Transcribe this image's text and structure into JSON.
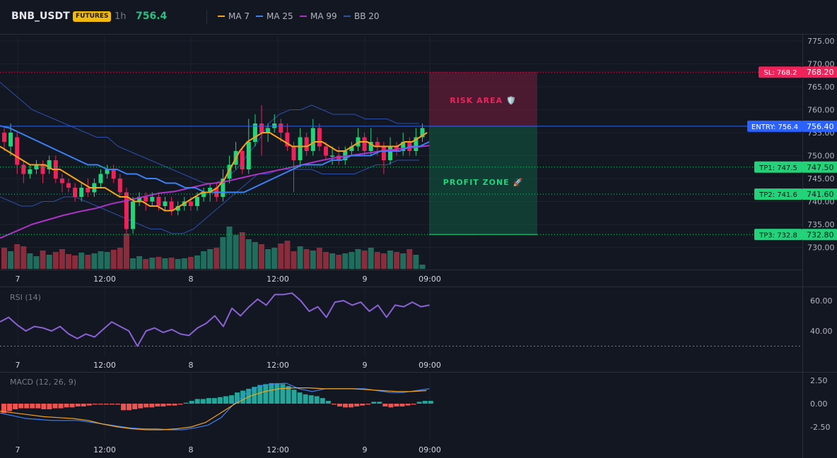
{
  "header": {
    "symbol": "BNB_USDT",
    "badge": "FUTURES",
    "timeframe": "1h",
    "price": "756.4",
    "legend": [
      {
        "label": "MA 7",
        "color": "#f7a21b"
      },
      {
        "label": "MA 25",
        "color": "#3b82f6"
      },
      {
        "label": "MA 99",
        "color": "#b033c9"
      },
      {
        "label": "BB 20",
        "color": "#2c4fa8"
      }
    ]
  },
  "colors": {
    "up": "#22d37a",
    "down": "#f0225a",
    "up_vol": "#1f6e5d",
    "down_vol": "#8a2c3c",
    "rsi": "#8b62d6",
    "macd": "#3b82f6",
    "signal": "#f7a21b"
  },
  "chart_data": [
    {
      "type": "candlestick",
      "title": "BNB_USDT",
      "x_tick_labels": [
        "7",
        "12:00",
        "8",
        "12:00",
        "9",
        "09:00"
      ],
      "y_tick_labels": [
        "775.00",
        "770.00",
        "765.00",
        "760.00",
        "755.00",
        "750.00",
        "745.00",
        "740.00",
        "735.00",
        "730.00"
      ],
      "ylim": [
        725.5,
        776.5
      ],
      "candles": [
        [
          755,
          753,
          756,
          751
        ],
        [
          752,
          755,
          757,
          750
        ],
        [
          754,
          748,
          755,
          746
        ],
        [
          748,
          746,
          749,
          744
        ],
        [
          746,
          747,
          748,
          745
        ],
        [
          747,
          748,
          749,
          746
        ],
        [
          748,
          746,
          749,
          744
        ],
        [
          747,
          749,
          750,
          746
        ],
        [
          749,
          745,
          750,
          744
        ],
        [
          745,
          744,
          746,
          742
        ],
        [
          744,
          743,
          745,
          742
        ],
        [
          743,
          741,
          744,
          740
        ],
        [
          741,
          743,
          744,
          740
        ],
        [
          743,
          742,
          745,
          741
        ],
        [
          742,
          744,
          745,
          741
        ],
        [
          744,
          746,
          747,
          743
        ],
        [
          746,
          747,
          748,
          745
        ],
        [
          747,
          745,
          748,
          744
        ],
        [
          745,
          742,
          746,
          741
        ],
        [
          742,
          734,
          743,
          733
        ],
        [
          734,
          740,
          741,
          733
        ],
        [
          740,
          741,
          742,
          739
        ],
        [
          741,
          740,
          742,
          738
        ],
        [
          740,
          741,
          742,
          739
        ],
        [
          741,
          739,
          742,
          738
        ],
        [
          739,
          740,
          741,
          738
        ],
        [
          740,
          738,
          741,
          737
        ],
        [
          738,
          739,
          740,
          737
        ],
        [
          739,
          740,
          741,
          738
        ],
        [
          740,
          739,
          741,
          738
        ],
        [
          739,
          741,
          742,
          738
        ],
        [
          741,
          742,
          743,
          740
        ],
        [
          742,
          743,
          744,
          740
        ],
        [
          743,
          741,
          744,
          740
        ],
        [
          741,
          745,
          747,
          740
        ],
        [
          745,
          748,
          750,
          744
        ],
        [
          748,
          751,
          753,
          747
        ],
        [
          751,
          747,
          752,
          746
        ],
        [
          747,
          753,
          758,
          746
        ],
        [
          753,
          757,
          759,
          752
        ],
        [
          757,
          755,
          761,
          750
        ],
        [
          755,
          756,
          757,
          753
        ],
        [
          756,
          757,
          759,
          755
        ],
        [
          757,
          755,
          758,
          753
        ],
        [
          755,
          752,
          757,
          751
        ],
        [
          752,
          749,
          753,
          742
        ],
        [
          749,
          754,
          756,
          748
        ],
        [
          754,
          751,
          755,
          750
        ],
        [
          751,
          756,
          758,
          750
        ],
        [
          756,
          752,
          757,
          751
        ],
        [
          752,
          750,
          753,
          749
        ],
        [
          750,
          750,
          752,
          748
        ],
        [
          750,
          749,
          752,
          748
        ],
        [
          749,
          751,
          752,
          748
        ],
        [
          751,
          752,
          753,
          750
        ],
        [
          752,
          754,
          756,
          751
        ],
        [
          754,
          751,
          755,
          750
        ],
        [
          751,
          753,
          756,
          750
        ],
        [
          753,
          752,
          754,
          750
        ],
        [
          752,
          749,
          753,
          746
        ],
        [
          749,
          752,
          754,
          748
        ],
        [
          752,
          751,
          753,
          750
        ],
        [
          751,
          753,
          755,
          750
        ],
        [
          753,
          751,
          754,
          750
        ],
        [
          751,
          754,
          756,
          750
        ],
        [
          754,
          756,
          757,
          753
        ]
      ],
      "volume": [
        30,
        25,
        35,
        32,
        22,
        18,
        26,
        20,
        24,
        28,
        21,
        19,
        23,
        20,
        22,
        25,
        24,
        27,
        30,
        50,
        15,
        18,
        14,
        16,
        17,
        15,
        16,
        14,
        15,
        17,
        19,
        25,
        28,
        30,
        45,
        60,
        48,
        52,
        42,
        38,
        35,
        28,
        30,
        36,
        40,
        25,
        32,
        28,
        26,
        30,
        24,
        22,
        20,
        22,
        24,
        28,
        26,
        30,
        24,
        22,
        26,
        24,
        22,
        28,
        20,
        6
      ],
      "ma7": [
        752,
        751,
        750,
        749,
        748,
        748,
        748,
        747,
        747,
        746,
        745,
        744,
        743,
        743,
        743,
        742,
        741,
        741,
        740,
        740,
        739,
        739,
        738,
        738,
        739,
        740,
        741,
        742,
        742,
        743,
        745,
        748,
        751,
        753,
        754,
        755,
        755,
        754,
        753,
        752,
        752,
        752,
        753,
        753,
        752,
        751,
        751,
        752,
        753,
        753,
        752,
        752,
        752,
        752,
        753,
        753,
        754,
        755
      ],
      "ma25": [
        756.5,
        756,
        755,
        754,
        753,
        752,
        751,
        750,
        749,
        748,
        748,
        747,
        747,
        746,
        746,
        745,
        745,
        744,
        744,
        743,
        743,
        742,
        742,
        742,
        742,
        742,
        743,
        744,
        745,
        746,
        747,
        748,
        748,
        748,
        749,
        749,
        750,
        750,
        750,
        751,
        751,
        751,
        752,
        752,
        753
      ],
      "ma99": [
        732,
        733.5,
        735,
        736,
        737,
        737.8,
        738.5,
        739.5,
        740.2,
        741,
        741.8,
        742.2,
        743,
        743.8,
        744.2,
        745,
        745.8,
        746.5,
        747.2,
        748,
        748.8,
        749.5,
        750,
        750.5,
        751,
        751.4,
        751.8,
        752.2
      ],
      "bb_upper": [
        766,
        764,
        762,
        760,
        759,
        758,
        757,
        756,
        755,
        754,
        754,
        752,
        751,
        750,
        749,
        748,
        747,
        746,
        745,
        744,
        744,
        745,
        747,
        750,
        753,
        757,
        759,
        760,
        760,
        761,
        760,
        759,
        759,
        759,
        758,
        758,
        758,
        757,
        757,
        757
      ],
      "bb_lower": [
        741,
        740,
        739,
        739,
        740,
        740,
        741,
        741,
        740,
        739,
        738,
        737,
        736,
        735,
        734,
        734,
        733,
        733,
        734,
        736,
        738,
        740,
        742,
        744,
        746,
        746,
        747,
        747,
        747,
        747,
        746,
        746,
        746,
        746,
        747,
        748,
        748,
        749,
        749,
        749
      ]
    },
    {
      "type": "line",
      "title": "RSI (14)",
      "y_tick_labels": [
        "60.00",
        "40.00"
      ],
      "ylim": [
        17.35,
        71.75
      ],
      "series": [
        {
          "name": "RSI (14)",
          "values": [
            46,
            49,
            44,
            40,
            43,
            42,
            40,
            43,
            38,
            35,
            38,
            36,
            41,
            46,
            43,
            40,
            30,
            40,
            42,
            39,
            41,
            38,
            37,
            42,
            45,
            50,
            43,
            55,
            50,
            56,
            61,
            57,
            64,
            64,
            65,
            60,
            53,
            56,
            49,
            59,
            60,
            57,
            59,
            53,
            57,
            49,
            57,
            56,
            59,
            56,
            57
          ]
        }
      ]
    },
    {
      "type": "mixed",
      "title": "MACD (12, 26, 9)",
      "y_tick_labels": [
        "2.50",
        "0.00",
        "-2.50"
      ],
      "ylim": [
        -4.63,
        4.46
      ],
      "histogram": [
        -1.0,
        -0.8,
        -0.6,
        -0.5,
        -0.5,
        -0.5,
        -0.5,
        -0.6,
        -0.6,
        -0.5,
        -0.5,
        -0.4,
        -0.4,
        -0.3,
        -0.3,
        -0.2,
        -0.1,
        -0.1,
        -0.1,
        -0.1,
        -0.1,
        -0.7,
        -0.7,
        -0.6,
        -0.5,
        -0.4,
        -0.4,
        -0.3,
        -0.3,
        -0.2,
        -0.2,
        -0.1,
        0.1,
        0.3,
        0.5,
        0.5,
        0.6,
        0.6,
        0.7,
        0.8,
        0.9,
        1.2,
        1.4,
        1.6,
        1.8,
        2.0,
        2.1,
        2.2,
        2.2,
        2.1,
        1.9,
        1.5,
        1.2,
        1.0,
        0.9,
        0.8,
        0.6,
        0.3,
        -0.1,
        -0.3,
        -0.4,
        -0.4,
        -0.3,
        -0.2,
        -0.1,
        0.2,
        0.2,
        -0.3,
        -0.4,
        -0.3,
        -0.3,
        -0.2,
        -0.1,
        0.2,
        0.3,
        0.3
      ],
      "macd": [
        -1.0,
        -1.3,
        -1.6,
        -1.7,
        -1.8,
        -1.8,
        -1.8,
        -2.0,
        -2.2,
        -2.4,
        -2.6,
        -2.7,
        -2.7,
        -2.8,
        -2.8,
        -2.6,
        -2.3,
        -1.5,
        0.0,
        1.2,
        1.9,
        2.1,
        2.2,
        1.6,
        1.3,
        1.6,
        1.6,
        1.6,
        1.6,
        1.4,
        1.2,
        1.2,
        1.4,
        1.6
      ],
      "signal": [
        -0.8,
        -1.0,
        -1.2,
        -1.4,
        -1.5,
        -1.6,
        -1.8,
        -2.2,
        -2.5,
        -2.7,
        -2.8,
        -2.8,
        -2.7,
        -2.5,
        -2.0,
        -1.0,
        0.0,
        0.8,
        1.3,
        1.6,
        1.7,
        1.7,
        1.6,
        1.6,
        1.6,
        1.5,
        1.4,
        1.3,
        1.3,
        1.4
      ]
    }
  ],
  "levels": {
    "sl": {
      "tag": "SL: 768.2",
      "value": "768.20",
      "price": 768.2
    },
    "entry": {
      "tag": "ENTRY: 756.4",
      "value": "756.40",
      "price": 756.4
    },
    "tps": [
      {
        "tag": "TP1: 747.5",
        "value": "747.50",
        "price": 747.5
      },
      {
        "tag": "TP2: 741.6",
        "value": "741.60",
        "price": 741.6
      },
      {
        "tag": "TP3: 732.8",
        "value": "732.80",
        "price": 732.8
      }
    ],
    "risk_label": "RISK AREA 🛡️",
    "profit_label": "PROFIT ZONE 🚀"
  }
}
